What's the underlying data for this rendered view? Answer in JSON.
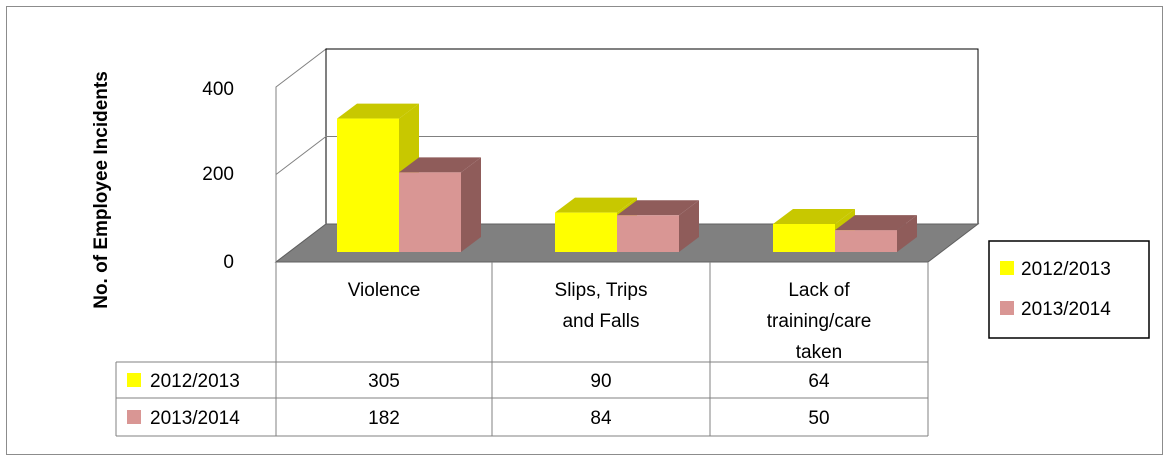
{
  "chart_data": {
    "type": "bar",
    "title": "",
    "xlabel": "",
    "ylabel": "No. of Employee Incidents",
    "ylim": [
      0,
      400
    ],
    "yticks": [
      "0",
      "200",
      "400"
    ],
    "categories": [
      [
        "Violence"
      ],
      [
        "Slips, Trips",
        "and Falls"
      ],
      [
        "Lack of",
        "training/care",
        "taken"
      ]
    ],
    "series": [
      {
        "name": "2012/2013",
        "values": [
          305,
          90,
          64
        ],
        "color": "#ffff00",
        "side_color": "#c8c800"
      },
      {
        "name": "2013/2014",
        "values": [
          182,
          84,
          50
        ],
        "color": "#d99694",
        "side_color": "#8f5c5a"
      }
    ],
    "data_table": [
      [
        "305",
        "90",
        "64"
      ],
      [
        "182",
        "84",
        "50"
      ]
    ],
    "legend_position": "right",
    "grid": true,
    "floor_color": "#808080"
  }
}
